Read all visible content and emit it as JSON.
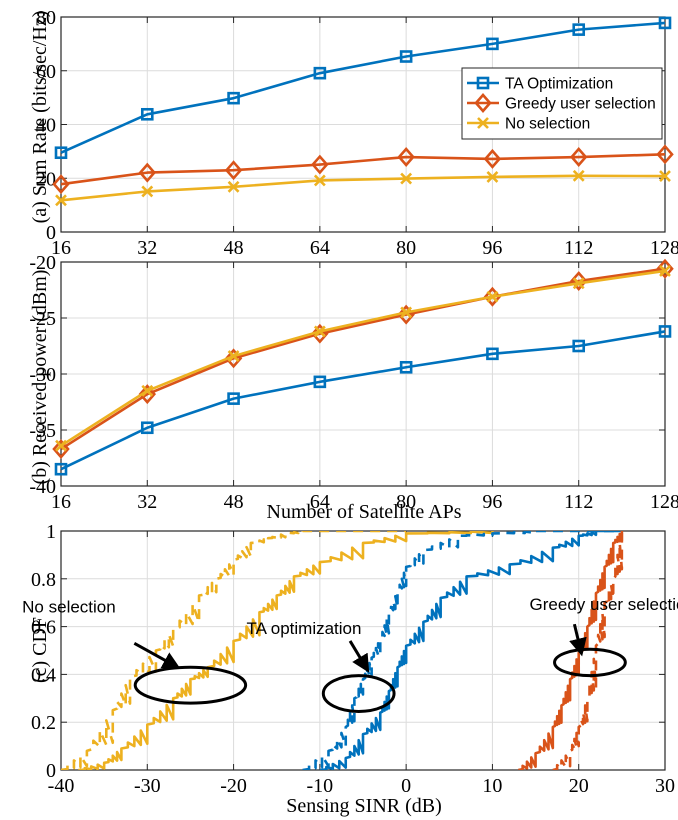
{
  "colors": {
    "blue": "#0072bd",
    "orange": "#d95319",
    "yellow": "#edb120"
  },
  "chart_data": [
    {
      "id": "a",
      "type": "line",
      "ylabel": "(a) Sum Rate (bits/sec/Hz)",
      "xlim": [
        16,
        128
      ],
      "ylim": [
        0,
        80
      ],
      "xticks": [
        16,
        32,
        48,
        64,
        80,
        96,
        112,
        128
      ],
      "yticks": [
        0,
        20,
        40,
        60,
        80
      ],
      "x": [
        16,
        32,
        48,
        64,
        80,
        96,
        112,
        128
      ],
      "legend": {
        "position": "center-right"
      },
      "series": [
        {
          "name": "TA Optimization",
          "color": "blue",
          "marker": "square",
          "values": [
            29.5,
            43.8,
            49.8,
            59.1,
            65.3,
            70.0,
            75.3,
            77.8
          ]
        },
        {
          "name": "Greedy user selection",
          "color": "orange",
          "marker": "diamond",
          "values": [
            17.8,
            22.1,
            23.0,
            25.1,
            27.9,
            27.2,
            27.9,
            28.9
          ]
        },
        {
          "name": "No selection",
          "color": "yellow",
          "marker": "x",
          "values": [
            11.8,
            15.1,
            16.8,
            19.2,
            19.9,
            20.5,
            20.9,
            20.8
          ]
        }
      ]
    },
    {
      "id": "b",
      "type": "line",
      "ylabel": "(b) Received power (dBm)",
      "xlabel": "Number of Satellite APs",
      "xlim": [
        16,
        128
      ],
      "ylim": [
        -40,
        -20
      ],
      "xticks": [
        16,
        32,
        48,
        64,
        80,
        96,
        112,
        128
      ],
      "yticks": [
        -40,
        -35,
        -30,
        -25,
        -20
      ],
      "x": [
        16,
        32,
        48,
        64,
        80,
        96,
        112,
        128
      ],
      "series": [
        {
          "name": "TA Optimization",
          "color": "blue",
          "marker": "square",
          "values": [
            -38.5,
            -34.8,
            -32.2,
            -30.7,
            -29.4,
            -28.2,
            -27.5,
            -26.2
          ]
        },
        {
          "name": "Greedy user selection",
          "color": "orange",
          "marker": "diamond",
          "values": [
            -36.7,
            -31.8,
            -28.6,
            -26.4,
            -24.7,
            -23.1,
            -21.7,
            -20.6
          ]
        },
        {
          "name": "No selection",
          "color": "yellow",
          "marker": "x",
          "values": [
            -36.4,
            -31.5,
            -28.4,
            -26.2,
            -24.5,
            -23.1,
            -21.9,
            -20.8
          ]
        }
      ]
    },
    {
      "id": "c",
      "type": "line",
      "ylabel": "(c) CDF",
      "xlabel": "Sensing SINR (dB)",
      "xlim": [
        -40,
        30
      ],
      "ylim": [
        0,
        1
      ],
      "xticks": [
        -40,
        -30,
        -20,
        -10,
        0,
        10,
        20,
        30
      ],
      "yticks": [
        0,
        0.2,
        0.4,
        0.6,
        0.8,
        1
      ],
      "series": [
        {
          "name": "No selection (solid)",
          "color": "yellow",
          "dash": false,
          "x": [
            -38,
            -35,
            -33,
            -30,
            -27,
            -25,
            -23,
            -20,
            -17,
            -15,
            -13,
            -10,
            -5,
            0,
            10
          ],
          "y": [
            0,
            0.03,
            0.09,
            0.19,
            0.3,
            0.38,
            0.43,
            0.54,
            0.66,
            0.73,
            0.81,
            0.87,
            0.95,
            0.99,
            1.0
          ]
        },
        {
          "name": "No selection (dashed)",
          "color": "yellow",
          "dash": true,
          "x": [
            -40,
            -37,
            -34,
            -32,
            -29,
            -27,
            -24,
            -22,
            -20,
            -18,
            -16,
            -14,
            -12,
            0
          ],
          "y": [
            0,
            0.08,
            0.25,
            0.39,
            0.5,
            0.59,
            0.73,
            0.8,
            0.88,
            0.95,
            0.97,
            0.99,
            1.0,
            1.0
          ]
        },
        {
          "name": "TA optimization (solid)",
          "color": "blue",
          "dash": false,
          "x": [
            -10,
            -7,
            -5,
            -3,
            -2,
            -1,
            0,
            2,
            4,
            7,
            12,
            17,
            20,
            22,
            25
          ],
          "y": [
            0,
            0.05,
            0.15,
            0.24,
            0.33,
            0.43,
            0.52,
            0.62,
            0.72,
            0.81,
            0.86,
            0.93,
            0.98,
            1.0,
            1.0
          ]
        },
        {
          "name": "TA optimization (dashed)",
          "color": "blue",
          "dash": true,
          "x": [
            -12,
            -9,
            -7,
            -6,
            -5,
            -4,
            -3,
            -2,
            -1,
            0,
            2,
            6,
            10,
            15,
            25
          ],
          "y": [
            0,
            0.08,
            0.18,
            0.3,
            0.38,
            0.47,
            0.55,
            0.66,
            0.75,
            0.85,
            0.92,
            0.98,
            0.99,
            1.0,
            1.0
          ]
        },
        {
          "name": "Greedy user selection (solid)",
          "color": "orange",
          "dash": false,
          "x": [
            13,
            15,
            17,
            18,
            19,
            20,
            21,
            22,
            23,
            24,
            25
          ],
          "y": [
            0,
            0.07,
            0.18,
            0.27,
            0.38,
            0.49,
            0.6,
            0.74,
            0.85,
            0.95,
            1.0
          ]
        },
        {
          "name": "Greedy user selection (dashed)",
          "color": "orange",
          "dash": true,
          "x": [
            17,
            19,
            20,
            21,
            22,
            23,
            24,
            25
          ],
          "y": [
            0,
            0.08,
            0.18,
            0.3,
            0.52,
            0.7,
            0.8,
            1.0
          ]
        }
      ],
      "annotations": [
        {
          "text": "No selection",
          "label_at": [
            -44.5,
            0.66
          ],
          "arrow_from": [
            -31.5,
            0.53
          ],
          "arrow_to": [
            -26.5,
            0.43
          ],
          "ellipse_center": [
            -25,
            0.355
          ],
          "ellipse_radii": [
            6.4,
            0.075
          ]
        },
        {
          "text": "TA optimization",
          "label_at": [
            -18.5,
            0.57
          ],
          "arrow_from": [
            -6.5,
            0.54
          ],
          "arrow_to": [
            -4.5,
            0.42
          ],
          "ellipse_center": [
            -5.5,
            0.32
          ],
          "ellipse_radii": [
            4.1,
            0.075
          ]
        },
        {
          "text": "Greedy user selection",
          "label_at": [
            14.3,
            0.67
          ],
          "arrow_from": [
            19.5,
            0.61
          ],
          "arrow_to": [
            20.3,
            0.49
          ],
          "ellipse_center": [
            21.3,
            0.45
          ],
          "ellipse_radii": [
            4.1,
            0.055
          ]
        }
      ]
    }
  ]
}
